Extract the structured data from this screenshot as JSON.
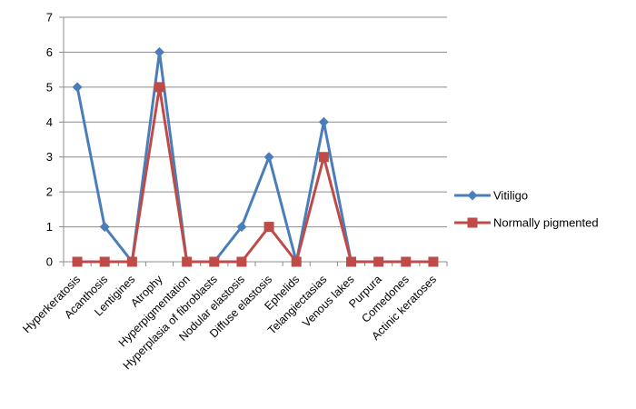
{
  "chart_data": {
    "type": "line",
    "title": "",
    "xlabel": "",
    "ylabel": "",
    "ylim": [
      0,
      7
    ],
    "yticks": [
      0,
      1,
      2,
      3,
      4,
      5,
      6,
      7
    ],
    "grid": "horizontal",
    "legend_position": "right",
    "categories": [
      "Hyperkeratosis",
      "Acanthosis",
      "Lentigines",
      "Atrophy",
      "Hyperpigmentation",
      "Hyperplasia of fibroblasts",
      "Nodular elastosis",
      "Diffuse elastosis",
      "Ephelids",
      "Telangiectasias",
      "Venous lakes",
      "Purpura",
      "Comedones",
      "Actinic keratoses"
    ],
    "series": [
      {
        "name": "Vitiligo",
        "color": "#4a7ebb",
        "marker": "diamond",
        "values": [
          5,
          1,
          0,
          6,
          0,
          0,
          1,
          3,
          0,
          4,
          0,
          null,
          null,
          null
        ]
      },
      {
        "name": "Normally pigmented",
        "color": "#be4b48",
        "marker": "square",
        "values": [
          0,
          0,
          0,
          5,
          0,
          0,
          0,
          1,
          0,
          3,
          0,
          0,
          0,
          0
        ]
      }
    ]
  }
}
